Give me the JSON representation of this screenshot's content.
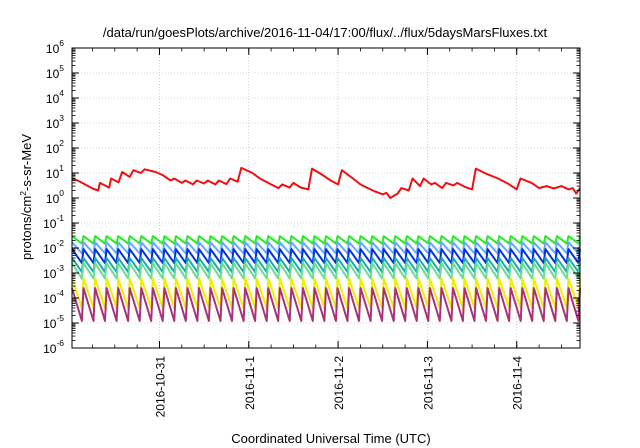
{
  "chart_data": {
    "type": "line",
    "title": "/data/run/goesPlots/archive/2016-11-04/17:00/flux/../flux/5daysMarsFluxes.txt",
    "xlabel": "Coordinated Universal Time (UTC)",
    "ylabel": {
      "base": "protons/cm",
      "sup": "2",
      "rest": "-s-sr-MeV"
    },
    "yscale": "log",
    "ylim": [
      1e-06,
      1000000.0
    ],
    "xlim": [
      "2016-10-30T00:30",
      "2016-11-04T17:00"
    ],
    "grid": true,
    "legend": "none",
    "y_ticks": [
      {
        "value": 1e-06,
        "base": "10",
        "exp": "-6"
      },
      {
        "value": 1e-05,
        "base": "10",
        "exp": "-5"
      },
      {
        "value": 0.0001,
        "base": "10",
        "exp": "-4"
      },
      {
        "value": 0.001,
        "base": "10",
        "exp": "-3"
      },
      {
        "value": 0.01,
        "base": "10",
        "exp": "-2"
      },
      {
        "value": 0.1,
        "base": "10",
        "exp": "-1"
      },
      {
        "value": 1,
        "base": "10",
        "exp": "0"
      },
      {
        "value": 10,
        "base": "10",
        "exp": "1"
      },
      {
        "value": 100,
        "base": "10",
        "exp": "2"
      },
      {
        "value": 1000,
        "base": "10",
        "exp": "3"
      },
      {
        "value": 10000,
        "base": "10",
        "exp": "4"
      },
      {
        "value": 100000,
        "base": "10",
        "exp": "5"
      },
      {
        "value": 1000000,
        "base": "10",
        "exp": "6"
      }
    ],
    "x_ticks": [
      {
        "value": "2016-10-31T00:00",
        "label": "2016-10-31"
      },
      {
        "value": "2016-11-01T00:00",
        "label": "2016-11-1"
      },
      {
        "value": "2016-11-02T00:00",
        "label": "2016-11-2"
      },
      {
        "value": "2016-11-03T00:00",
        "label": "2016-11-3"
      },
      {
        "value": "2016-11-04T00:00",
        "label": "2016-11-4"
      }
    ],
    "series": [
      {
        "color": "#ee1111",
        "points": [
          [
            "2016-10-30T00:30",
            6
          ],
          [
            "2016-10-30T02:00",
            5
          ],
          [
            "2016-10-30T04:00",
            3.5
          ],
          [
            "2016-10-30T06:00",
            2.4
          ],
          [
            "2016-10-30T07:30",
            2
          ],
          [
            "2016-10-30T08:00",
            4
          ],
          [
            "2016-10-30T10:30",
            2.6
          ],
          [
            "2016-10-30T11:00",
            6
          ],
          [
            "2016-10-30T13:00",
            4.2
          ],
          [
            "2016-10-30T14:00",
            11
          ],
          [
            "2016-10-30T16:00",
            7
          ],
          [
            "2016-10-30T17:00",
            13
          ],
          [
            "2016-10-30T19:00",
            10
          ],
          [
            "2016-10-30T20:00",
            14
          ],
          [
            "2016-10-30T23:00",
            11
          ],
          [
            "2016-10-31T01:00",
            8
          ],
          [
            "2016-10-31T03:00",
            5
          ],
          [
            "2016-10-31T04:00",
            6
          ],
          [
            "2016-10-31T06:00",
            4
          ],
          [
            "2016-10-31T07:00",
            5
          ],
          [
            "2016-10-31T09:00",
            3.5
          ],
          [
            "2016-10-31T10:00",
            5
          ],
          [
            "2016-10-31T12:00",
            3.8
          ],
          [
            "2016-10-31T13:00",
            5
          ],
          [
            "2016-10-31T15:00",
            3.5
          ],
          [
            "2016-10-31T16:00",
            5
          ],
          [
            "2016-10-31T18:00",
            3.6
          ],
          [
            "2016-10-31T19:00",
            6
          ],
          [
            "2016-10-31T21:00",
            4.5
          ],
          [
            "2016-10-31T22:00",
            16
          ],
          [
            "2016-11-01T01:00",
            10
          ],
          [
            "2016-11-01T03:00",
            6
          ],
          [
            "2016-11-01T06:00",
            3.5
          ],
          [
            "2016-11-01T08:00",
            2.5
          ],
          [
            "2016-11-01T09:00",
            3.5
          ],
          [
            "2016-11-01T11:00",
            2.6
          ],
          [
            "2016-11-01T12:00",
            4
          ],
          [
            "2016-11-01T14:00",
            2.6
          ],
          [
            "2016-11-01T16:00",
            2.2
          ],
          [
            "2016-11-01T17:00",
            15
          ],
          [
            "2016-11-01T20:00",
            8
          ],
          [
            "2016-11-01T22:00",
            5
          ],
          [
            "2016-11-02T00:00",
            3.5
          ],
          [
            "2016-11-02T01:00",
            13
          ],
          [
            "2016-11-02T04:00",
            6
          ],
          [
            "2016-11-02T06:00",
            3.5
          ],
          [
            "2016-11-02T08:00",
            2.5
          ],
          [
            "2016-11-02T10:00",
            1.8
          ],
          [
            "2016-11-02T12:00",
            1.4
          ],
          [
            "2016-11-02T13:00",
            1.6
          ],
          [
            "2016-11-02T14:00",
            1
          ],
          [
            "2016-11-02T16:00",
            1.5
          ],
          [
            "2016-11-02T17:00",
            2.5
          ],
          [
            "2016-11-02T19:00",
            2
          ],
          [
            "2016-11-02T20:00",
            6
          ],
          [
            "2016-11-02T22:00",
            3
          ],
          [
            "2016-11-02T23:00",
            6
          ],
          [
            "2016-11-03T01:00",
            3.5
          ],
          [
            "2016-11-03T02:00",
            4
          ],
          [
            "2016-11-03T04:00",
            2.5
          ],
          [
            "2016-11-03T05:00",
            4
          ],
          [
            "2016-11-03T07:00",
            3.2
          ],
          [
            "2016-11-03T08:00",
            4
          ],
          [
            "2016-11-03T10:00",
            2.8
          ],
          [
            "2016-11-03T12:00",
            2.2
          ],
          [
            "2016-11-03T13:00",
            15
          ],
          [
            "2016-11-03T16:00",
            9
          ],
          [
            "2016-11-03T19:00",
            6
          ],
          [
            "2016-11-03T22:00",
            3.5
          ],
          [
            "2016-11-04T00:00",
            2.2
          ],
          [
            "2016-11-04T01:00",
            6
          ],
          [
            "2016-11-04T04:00",
            4
          ],
          [
            "2016-11-04T06:00",
            2.5
          ],
          [
            "2016-11-04T08:00",
            3
          ],
          [
            "2016-11-04T10:00",
            2.4
          ],
          [
            "2016-11-04T12:00",
            3
          ],
          [
            "2016-11-04T14:00",
            2.2
          ],
          [
            "2016-11-04T15:00",
            2.5
          ],
          [
            "2016-11-04T16:00",
            1.5
          ],
          [
            "2016-11-04T17:00",
            2.5
          ]
        ]
      },
      {
        "color": "#22ee22",
        "sawtooth": {
          "high": 0.03,
          "low": 0.015,
          "teeth": 44
        }
      },
      {
        "color": "#66aaff",
        "sawtooth": {
          "high": 0.017,
          "low": 0.006,
          "teeth": 44
        }
      },
      {
        "color": "#0033dd",
        "sawtooth": {
          "high": 0.009,
          "low": 0.0025,
          "teeth": 44
        }
      },
      {
        "color": "#22aaaa",
        "sawtooth": {
          "high": 0.004,
          "low": 0.0011,
          "teeth": 44
        }
      },
      {
        "color": "#66dd99",
        "sawtooth": {
          "high": 0.0025,
          "low": 0.0006,
          "teeth": 44
        }
      },
      {
        "color": "#eeee00",
        "sawtooth": {
          "high": 0.0006,
          "low": 4e-05,
          "teeth": 44
        }
      },
      {
        "color": "#aa3377",
        "sawtooth": {
          "high": 0.00025,
          "low": 1.2e-05,
          "teeth": 44
        }
      }
    ]
  }
}
